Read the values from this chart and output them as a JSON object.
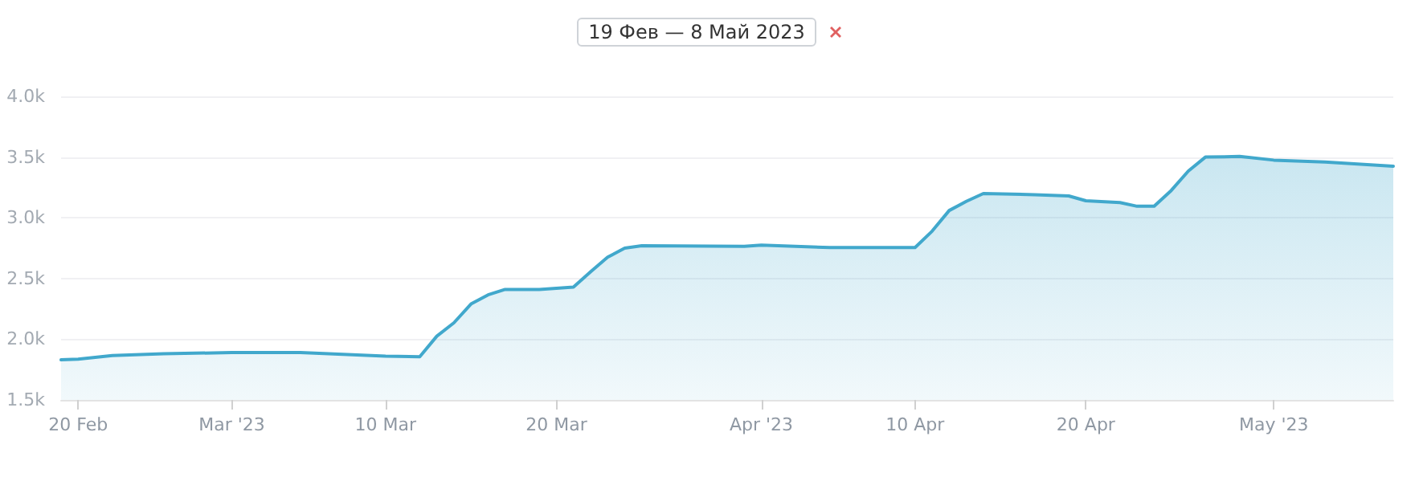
{
  "chart_data": {
    "type": "area",
    "title": "19 Фев — 8 Май 2023",
    "x": [
      "2023-02-19",
      "2023-02-20",
      "2023-02-22",
      "2023-02-25",
      "2023-03-01",
      "2023-03-05",
      "2023-03-10",
      "2023-03-12",
      "2023-03-13",
      "2023-03-14",
      "2023-03-15",
      "2023-03-16",
      "2023-03-17",
      "2023-03-19",
      "2023-03-21",
      "2023-03-22",
      "2023-03-23",
      "2023-03-24",
      "2023-03-25",
      "2023-03-31",
      "2023-04-01",
      "2023-04-05",
      "2023-04-10",
      "2023-04-11",
      "2023-04-12",
      "2023-04-13",
      "2023-04-14",
      "2023-04-17",
      "2023-04-19",
      "2023-04-20",
      "2023-04-22",
      "2023-04-23",
      "2023-04-24",
      "2023-04-25",
      "2023-04-26",
      "2023-04-27",
      "2023-04-29",
      "2023-05-01",
      "2023-05-04",
      "2023-05-08"
    ],
    "series": [
      {
        "color": "#41a8cc",
        "values": [
          1830,
          1835,
          1865,
          1880,
          1890,
          1890,
          1860,
          1855,
          2025,
          2135,
          2290,
          2365,
          2410,
          2410,
          2430,
          2555,
          2675,
          2750,
          2770,
          2765,
          2775,
          2755,
          2755,
          2890,
          3060,
          3135,
          3200,
          3190,
          3180,
          3140,
          3125,
          3095,
          3095,
          3225,
          3385,
          3500,
          3505,
          3475,
          3460,
          3425
        ]
      }
    ],
    "xlim": [
      "2023-02-19",
      "2023-05-08"
    ],
    "xticks": [
      {
        "value": "2023-02-20",
        "label": "20 Feb"
      },
      {
        "value": "2023-03-01",
        "label": "Mar '23"
      },
      {
        "value": "2023-03-10",
        "label": "10 Mar"
      },
      {
        "value": "2023-03-20",
        "label": "20 Mar"
      },
      {
        "value": "2023-04-01",
        "label": "Apr '23"
      },
      {
        "value": "2023-04-10",
        "label": "10 Apr"
      },
      {
        "value": "2023-04-20",
        "label": "20 Apr"
      },
      {
        "value": "2023-05-01",
        "label": "May '23"
      }
    ],
    "ylim": [
      1500,
      4000
    ],
    "yticks": [
      {
        "value": 1500,
        "label": "1.5k"
      },
      {
        "value": 2000,
        "label": "2.0k"
      },
      {
        "value": 2500,
        "label": "2.5k"
      },
      {
        "value": 3000,
        "label": "3.0k"
      },
      {
        "value": 3500,
        "label": "3.5k"
      },
      {
        "value": 4000,
        "label": "4.0k"
      }
    ],
    "grid": "y",
    "marker": "none",
    "line_style": "solid"
  }
}
